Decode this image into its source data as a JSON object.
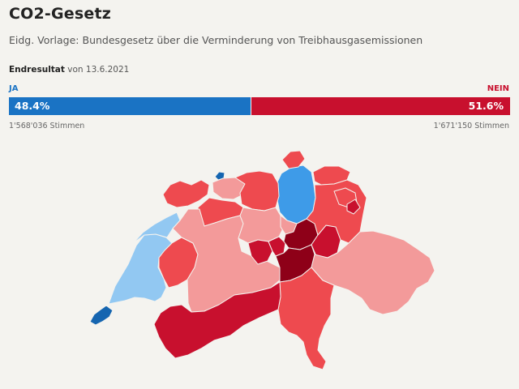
{
  "header": {
    "title": "CO2-Gesetz",
    "subtitle": "Eidg. Vorlage: Bundesgesetz über die Verminderung von Treibhausgasemissionen"
  },
  "result": {
    "status": "Endresultat",
    "date_text": "von 13.6.2021",
    "ja_label": "JA",
    "nein_label": "NEIN",
    "ja_percent_text": "48.4%",
    "nein_percent_text": "51.6%",
    "ja_percent": 48.4,
    "nein_percent": 51.6,
    "ja_votes": "1'568'036 Stimmen",
    "nein_votes": "1'671'150 Stimmen"
  },
  "colors": {
    "ja": "#1a73c4",
    "nein": "#c8102e",
    "ja_strong": "#1565b0",
    "ja_medium": "#3e9be8",
    "ja_light": "#92c8f2",
    "nein_light": "#f39a9a",
    "nein_medium": "#ee4a4f",
    "nein_strong": "#c8102e",
    "nein_darkest": "#8e0018"
  },
  "map": {
    "regions": [
      {
        "id": "genf",
        "shade": "ja_strong"
      },
      {
        "id": "waadt",
        "shade": "ja_light"
      },
      {
        "id": "basel-stadt",
        "shade": "ja_strong"
      },
      {
        "id": "zuerich",
        "shade": "ja_medium"
      },
      {
        "id": "jura",
        "shade": "nein_medium"
      },
      {
        "id": "basel-land",
        "shade": "nein_light"
      },
      {
        "id": "solothurn",
        "shade": "nein_medium"
      },
      {
        "id": "aargau",
        "shade": "nein_medium"
      },
      {
        "id": "neuenburg",
        "shade": "ja_light"
      },
      {
        "id": "freiburg",
        "shade": "nein_medium"
      },
      {
        "id": "bern",
        "shade": "nein_light"
      },
      {
        "id": "luzern",
        "shade": "nein_light"
      },
      {
        "id": "zug",
        "shade": "nein_light"
      },
      {
        "id": "obwalden",
        "shade": "nein_strong"
      },
      {
        "id": "nidwalden",
        "shade": "nein_strong"
      },
      {
        "id": "schwyz",
        "shade": "nein_darkest"
      },
      {
        "id": "uri",
        "shade": "nein_darkest"
      },
      {
        "id": "glarus",
        "shade": "nein_strong"
      },
      {
        "id": "schaffhausen",
        "shade": "nein_medium"
      },
      {
        "id": "thurgau",
        "shade": "nein_medium"
      },
      {
        "id": "st-gallen",
        "shade": "nein_medium"
      },
      {
        "id": "appenzell-ar",
        "shade": "nein_medium"
      },
      {
        "id": "appenzell-ir",
        "shade": "nein_strong"
      },
      {
        "id": "graubuenden",
        "shade": "nein_light"
      },
      {
        "id": "tessin",
        "shade": "nein_medium"
      },
      {
        "id": "wallis",
        "shade": "nein_strong"
      }
    ]
  }
}
